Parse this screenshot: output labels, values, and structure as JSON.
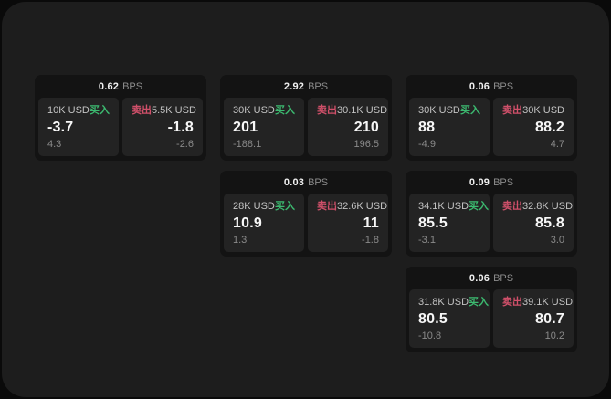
{
  "labels": {
    "bps_unit": "BPS",
    "buy": "买入",
    "sell": "卖出"
  },
  "colors": {
    "buy": "#3cba70",
    "sell": "#d0506a",
    "board_bg": "#1d1d1d",
    "card_bg": "#131313",
    "panel_bg": "#232323"
  },
  "cards": [
    {
      "bps": "0.62",
      "buy": {
        "size": "10K USD",
        "price": "-3.7",
        "delta": "4.3"
      },
      "sell": {
        "size": "5.5K USD",
        "price": "-1.8",
        "delta": "-2.6"
      }
    },
    {
      "bps": "2.92",
      "buy": {
        "size": "30K USD",
        "price": "201",
        "delta": "-188.1"
      },
      "sell": {
        "size": "30.1K USD",
        "price": "210",
        "delta": "196.5"
      }
    },
    {
      "bps": "0.06",
      "buy": {
        "size": "30K USD",
        "price": "88",
        "delta": "-4.9"
      },
      "sell": {
        "size": "30K USD",
        "price": "88.2",
        "delta": "4.7"
      }
    },
    {
      "bps": "0.03",
      "buy": {
        "size": "28K USD",
        "price": "10.9",
        "delta": "1.3"
      },
      "sell": {
        "size": "32.6K USD",
        "price": "11",
        "delta": "-1.8"
      }
    },
    {
      "bps": "0.09",
      "buy": {
        "size": "34.1K USD",
        "price": "85.5",
        "delta": "-3.1"
      },
      "sell": {
        "size": "32.8K USD",
        "price": "85.8",
        "delta": "3.0"
      }
    },
    {
      "bps": "0.06",
      "buy": {
        "size": "31.8K USD",
        "price": "80.5",
        "delta": "-10.8"
      },
      "sell": {
        "size": "39.1K USD",
        "price": "80.7",
        "delta": "10.2"
      }
    }
  ]
}
